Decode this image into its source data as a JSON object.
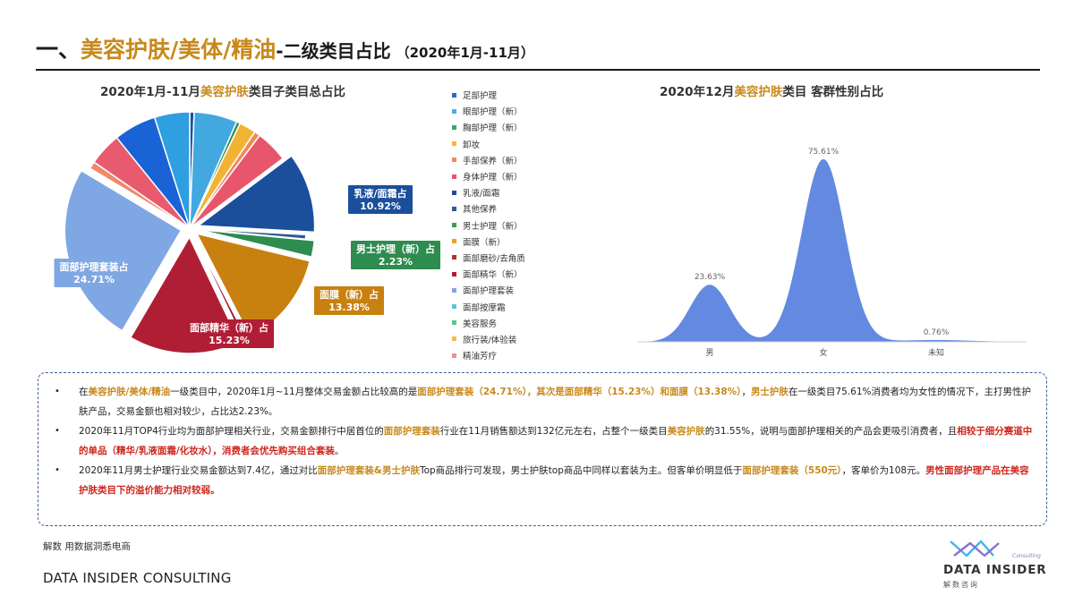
{
  "header": {
    "t1": "一、",
    "t2": "美容护肤/美体/精油",
    "t3": "-二级类目占比",
    "t4": "（2020年1月-11月）"
  },
  "chart_data": [
    {
      "type": "pie",
      "title_prefix": "2020年1月-11月",
      "title_highlight": "美容护肤",
      "title_suffix": "类目子类目总占比",
      "slices": [
        {
          "name": "足部护理",
          "value": 0.6,
          "color": "#1F4E9C"
        },
        {
          "name": "眼部护理（新）",
          "value": 5.9,
          "color": "#41A8E0"
        },
        {
          "name": "胸部护理（新）",
          "value": 0.5,
          "color": "#2E8B57"
        },
        {
          "name": "卸妆",
          "value": 2.3,
          "color": "#F2B233"
        },
        {
          "name": "手部保养（新）",
          "value": 0.8,
          "color": "#F08A5D"
        },
        {
          "name": "身体护理（新）",
          "value": 4.4,
          "color": "#E8566C"
        },
        {
          "name": "乳液/面霜",
          "value": 10.92,
          "color": "#1B4F9C",
          "label_name": "乳液/面霜占",
          "label_value": "10.92%"
        },
        {
          "name": "其他保养",
          "value": 0.6,
          "color": "#2D5A91"
        },
        {
          "name": "男士护理（新）",
          "value": 2.23,
          "color": "#2D8C4E",
          "label_name": "男士护理（新）占",
          "label_value": "2.23%"
        },
        {
          "name": "面膜（新）",
          "value": 13.38,
          "color": "#C8800F",
          "label_name": "面膜（新）占",
          "label_value": "13.38%"
        },
        {
          "name": "面部磨砂/去角质",
          "value": 0.5,
          "color": "#9B1B30"
        },
        {
          "name": "面部精华（新）",
          "value": 15.23,
          "color": "#B01E35",
          "label_name": "面部精华（新）占",
          "label_value": "15.23%"
        },
        {
          "name": "面部护理套装",
          "value": 24.71,
          "color": "#7FA7E3",
          "label_name": "面部护理套装占",
          "label_value": "24.71%"
        },
        {
          "name": "面部按摩霜",
          "value": 1.0,
          "color": "#EE8A6B"
        },
        {
          "name": "美容服务",
          "value": 4.5,
          "color": "#E85B6E"
        },
        {
          "name": "旅行装/体验装",
          "value": 5.8,
          "color": "#1A63D6"
        },
        {
          "name": "精油芳疗",
          "value": 4.8,
          "color": "#2E9FE0"
        }
      ],
      "legend": [
        {
          "name": "足部护理",
          "color": "#2F67C9"
        },
        {
          "name": "眼部护理（新）",
          "color": "#47B0E8"
        },
        {
          "name": "胸部护理（新）",
          "color": "#3BA776"
        },
        {
          "name": "卸妆",
          "color": "#F5B83D"
        },
        {
          "name": "手部保养（新）",
          "color": "#F08A5D"
        },
        {
          "name": "身体护理（新）",
          "color": "#E8566C"
        },
        {
          "name": "乳液/面霜",
          "color": "#1B4F9C"
        },
        {
          "name": "其他保养",
          "color": "#2D5A91"
        },
        {
          "name": "男士护理（新）",
          "color": "#3E9A55"
        },
        {
          "name": "面膜（新）",
          "color": "#E7A528"
        },
        {
          "name": "面部磨砂/去角质",
          "color": "#A0392E"
        },
        {
          "name": "面部精华（新）",
          "color": "#B01E35"
        },
        {
          "name": "面部护理套装",
          "color": "#7FA7E3"
        },
        {
          "name": "面部按摩霜",
          "color": "#5EC4D8"
        },
        {
          "name": "美容服务",
          "color": "#5FC48E"
        },
        {
          "name": "旅行装/体验装",
          "color": "#F3BC4D"
        },
        {
          "name": "精油芳疗",
          "color": "#F08F8F"
        }
      ]
    },
    {
      "type": "area",
      "title_prefix": "2020年12月",
      "title_highlight": "美容护肤",
      "title_suffix": "类目 客群性别占比",
      "categories": [
        "男",
        "女",
        "未知"
      ],
      "values": [
        23.63,
        75.61,
        0.76
      ],
      "labels": [
        "23.63%",
        "75.61%",
        "0.76%"
      ],
      "ylim": [
        0,
        80
      ],
      "color": "#5B83DE"
    }
  ],
  "insights": [
    {
      "segments": [
        {
          "text": "在",
          "style": ""
        },
        {
          "text": "美容护肤/美体/精油",
          "style": "gold"
        },
        {
          "text": "一级类目中，2020年1月~11月整体交易金额占比较高的是",
          "style": ""
        },
        {
          "text": "面部护理套装（24.71%），其次是面部精华（15.23%）和面膜（13.38%）",
          "style": "gold"
        },
        {
          "text": "，",
          "style": ""
        },
        {
          "text": "男士护肤",
          "style": "gold"
        },
        {
          "text": "在一级类目75.61%消费者均为女性的情况下，主打男性护肤产品，交易金额也相对较少，占比达2.23%。",
          "style": ""
        }
      ]
    },
    {
      "segments": [
        {
          "text": "2020年11月TOP4行业均为面部护理相关行业，交易金额排行中居首位的",
          "style": ""
        },
        {
          "text": "面部护理套装",
          "style": "gold"
        },
        {
          "text": "行业在11月销售额达到132亿元左右，占整个一级类目",
          "style": ""
        },
        {
          "text": "美容护肤",
          "style": "gold"
        },
        {
          "text": "的31.55%，说明与面部护理相关的产品会更吸引消费者，且",
          "style": ""
        },
        {
          "text": "相较于细分赛道中的单品（精华/乳液面霜/化妆水），消费者会优先购买组合套装",
          "style": "red"
        },
        {
          "text": "。",
          "style": ""
        }
      ]
    },
    {
      "segments": [
        {
          "text": "2020年11月男士护理行业交易金额达到7.4亿，通过对比",
          "style": ""
        },
        {
          "text": "面部护理套装&男士护肤",
          "style": "gold"
        },
        {
          "text": "Top商品排行可发现，男士护肤top商品中同样以套装为主。但客单价明显低于",
          "style": ""
        },
        {
          "text": "面部护理套装（550元）",
          "style": "gold"
        },
        {
          "text": "，客单价为108元。",
          "style": ""
        },
        {
          "text": "男性面部护理产品在美容护肤类目下的溢价能力相对较弱。",
          "style": "red"
        }
      ]
    }
  ],
  "footer": {
    "source": "解数 用数据洞悉电商",
    "brand": "DATA INSIDER CONSULTING",
    "logo_name": "DATA INSIDER",
    "logo_sub": "解数咨询",
    "logo_tag": "Consulting"
  }
}
